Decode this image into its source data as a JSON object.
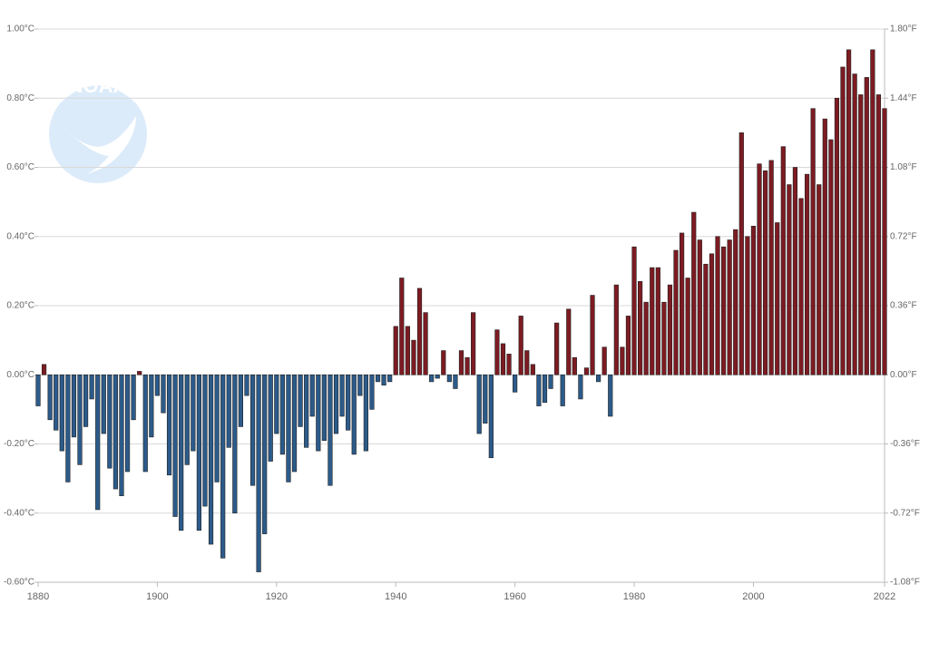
{
  "chart_data": {
    "type": "bar",
    "logo_text": "NOAA",
    "x": [
      1880,
      1881,
      1882,
      1883,
      1884,
      1885,
      1886,
      1887,
      1888,
      1889,
      1890,
      1891,
      1892,
      1893,
      1894,
      1895,
      1896,
      1897,
      1898,
      1899,
      1900,
      1901,
      1902,
      1903,
      1904,
      1905,
      1906,
      1907,
      1908,
      1909,
      1910,
      1911,
      1912,
      1913,
      1914,
      1915,
      1916,
      1917,
      1918,
      1919,
      1920,
      1921,
      1922,
      1923,
      1924,
      1925,
      1926,
      1927,
      1928,
      1929,
      1930,
      1931,
      1932,
      1933,
      1934,
      1935,
      1936,
      1937,
      1938,
      1939,
      1940,
      1941,
      1942,
      1943,
      1944,
      1945,
      1946,
      1947,
      1948,
      1949,
      1950,
      1951,
      1952,
      1953,
      1954,
      1955,
      1956,
      1957,
      1958,
      1959,
      1960,
      1961,
      1962,
      1963,
      1964,
      1965,
      1966,
      1967,
      1968,
      1969,
      1970,
      1971,
      1972,
      1973,
      1974,
      1975,
      1976,
      1977,
      1978,
      1979,
      1980,
      1981,
      1982,
      1983,
      1984,
      1985,
      1986,
      1987,
      1988,
      1989,
      1990,
      1991,
      1992,
      1993,
      1994,
      1995,
      1996,
      1997,
      1998,
      1999,
      2000,
      2001,
      2002,
      2003,
      2004,
      2005,
      2006,
      2007,
      2008,
      2009,
      2010,
      2011,
      2012,
      2013,
      2014,
      2015,
      2016,
      2017,
      2018,
      2019,
      2020,
      2021,
      2022
    ],
    "values": [
      -0.09,
      0.03,
      -0.13,
      -0.16,
      -0.22,
      -0.31,
      -0.18,
      -0.26,
      -0.15,
      -0.07,
      -0.39,
      -0.17,
      -0.27,
      -0.33,
      -0.35,
      -0.28,
      -0.13,
      0.01,
      -0.28,
      -0.18,
      -0.06,
      -0.11,
      -0.29,
      -0.41,
      -0.45,
      -0.26,
      -0.22,
      -0.45,
      -0.38,
      -0.49,
      -0.31,
      -0.53,
      -0.21,
      -0.4,
      -0.15,
      -0.06,
      -0.32,
      -0.57,
      -0.46,
      -0.25,
      -0.17,
      -0.23,
      -0.31,
      -0.28,
      -0.15,
      -0.21,
      -0.12,
      -0.22,
      -0.19,
      -0.32,
      -0.17,
      -0.12,
      -0.16,
      -0.23,
      -0.06,
      -0.22,
      -0.1,
      -0.02,
      -0.03,
      -0.02,
      0.14,
      0.28,
      0.14,
      0.1,
      0.25,
      0.18,
      -0.02,
      -0.01,
      0.07,
      -0.02,
      -0.04,
      0.07,
      0.05,
      0.18,
      -0.17,
      -0.14,
      -0.24,
      0.13,
      0.09,
      0.06,
      -0.05,
      0.17,
      0.07,
      0.03,
      -0.09,
      -0.08,
      -0.04,
      0.15,
      -0.09,
      0.19,
      0.05,
      -0.07,
      0.02,
      0.23,
      -0.02,
      0.08,
      -0.12,
      0.26,
      0.08,
      0.17,
      0.37,
      0.27,
      0.21,
      0.31,
      0.31,
      0.21,
      0.26,
      0.36,
      0.41,
      0.28,
      0.47,
      0.39,
      0.32,
      0.35,
      0.4,
      0.37,
      0.39,
      0.42,
      0.7,
      0.4,
      0.43,
      0.61,
      0.59,
      0.62,
      0.44,
      0.66,
      0.55,
      0.6,
      0.51,
      0.58,
      0.77,
      0.55,
      0.74,
      0.68,
      0.8,
      0.89,
      0.94,
      0.87,
      0.81,
      0.86,
      0.94,
      0.81,
      0.77
    ],
    "colors": {
      "positive": "#7d1b22",
      "negative": "#2c5b8a"
    },
    "xlim": [
      1880,
      2022
    ],
    "xticks": [
      1880,
      1900,
      1920,
      1940,
      1960,
      1980,
      2000,
      2022
    ],
    "ylim": [
      -0.6,
      1.0
    ],
    "yticks": [
      {
        "value": -0.6,
        "label": "-0.60°C"
      },
      {
        "value": -0.4,
        "label": "-0.40°C"
      },
      {
        "value": -0.2,
        "label": "-0.20°C"
      },
      {
        "value": 0,
        "label": "0.00°C"
      },
      {
        "value": 0.2,
        "label": "0.20°C"
      },
      {
        "value": 0.4,
        "label": "0.40°C"
      },
      {
        "value": 0.6,
        "label": "0.60°C"
      },
      {
        "value": 0.8,
        "label": "0.80°C"
      },
      {
        "value": 1.0,
        "label": "1.00°C"
      }
    ],
    "y2lim": [
      -1.08,
      1.8
    ],
    "y2ticks": [
      {
        "value": -1.08,
        "label": "-1.08°F"
      },
      {
        "value": -0.72,
        "label": "-0.72°F"
      },
      {
        "value": -0.36,
        "label": "-0.36°F"
      },
      {
        "value": 0,
        "label": "0.00°F"
      },
      {
        "value": 0.36,
        "label": "0.36°F"
      },
      {
        "value": 0.72,
        "label": "0.72°F"
      },
      {
        "value": 1.08,
        "label": "1.08°F"
      },
      {
        "value": 1.44,
        "label": "1.44°F"
      },
      {
        "value": 1.8,
        "label": "1.80°F"
      }
    ],
    "grid": true
  }
}
